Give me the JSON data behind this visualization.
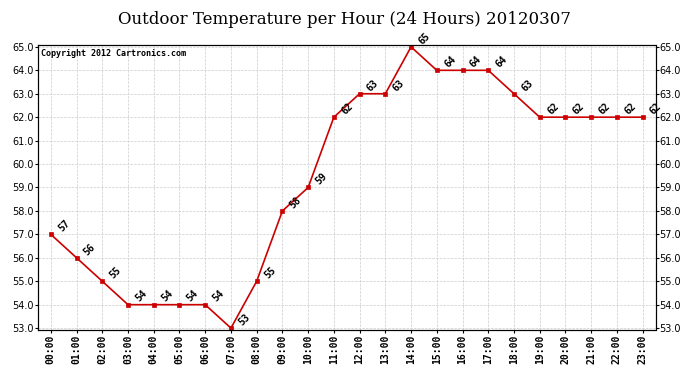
{
  "title": "Outdoor Temperature per Hour (24 Hours) 20120307",
  "copyright_text": "Copyright 2012 Cartronics.com",
  "hours": [
    "00:00",
    "01:00",
    "02:00",
    "03:00",
    "04:00",
    "05:00",
    "06:00",
    "07:00",
    "08:00",
    "09:00",
    "10:00",
    "11:00",
    "12:00",
    "13:00",
    "14:00",
    "15:00",
    "16:00",
    "17:00",
    "18:00",
    "19:00",
    "20:00",
    "21:00",
    "22:00",
    "23:00"
  ],
  "temperatures": [
    57,
    56,
    55,
    54,
    54,
    54,
    54,
    53,
    55,
    58,
    59,
    62,
    63,
    63,
    65,
    64,
    64,
    64,
    63,
    62,
    62,
    62,
    62,
    62
  ],
  "line_color": "#cc0000",
  "marker_color": "#cc0000",
  "bg_color": "#ffffff",
  "grid_color": "#cccccc",
  "ylim_min": 53.0,
  "ylim_max": 65.0,
  "ytick_interval": 1.0,
  "title_fontsize": 12,
  "label_fontsize": 7,
  "annot_fontsize": 7,
  "copyright_fontsize": 6
}
